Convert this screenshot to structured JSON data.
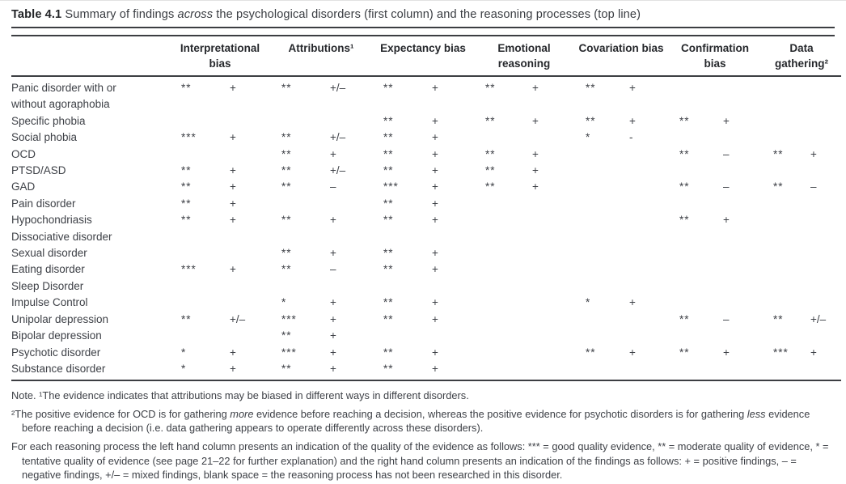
{
  "caption": {
    "segments": [
      {
        "text": "Table 4.1",
        "bold": true
      },
      {
        "text": " Summary of findings "
      },
      {
        "text": "across",
        "italic": true
      },
      {
        "text": " the psychological disorders (first column) and the reasoning processes (top line)"
      }
    ]
  },
  "table": {
    "columns": [
      "Interpretational bias",
      "Attributions¹",
      "Expectancy bias",
      "Emotional reasoning",
      "Covariation bias",
      "Confirmation bias",
      "Data gathering²"
    ],
    "subcolumn_meaning": {
      "left": "quality of evidence (*, **, ***)",
      "right": "direction of findings (+, –, +/–, blank)"
    },
    "rows": [
      {
        "label": "Panic disorder with or without agoraphobia",
        "cells": [
          [
            "**",
            "+"
          ],
          [
            "**",
            "+/–"
          ],
          [
            "**",
            "+"
          ],
          [
            "**",
            "+"
          ],
          [
            "**",
            "+"
          ],
          [
            "",
            ""
          ],
          [
            "",
            ""
          ]
        ]
      },
      {
        "label": "Specific phobia",
        "cells": [
          [
            "",
            ""
          ],
          [
            "",
            ""
          ],
          [
            "**",
            "+"
          ],
          [
            "**",
            "+"
          ],
          [
            "**",
            "+"
          ],
          [
            "**",
            "+"
          ],
          [
            "",
            ""
          ]
        ]
      },
      {
        "label": "Social phobia",
        "cells": [
          [
            "***",
            "+"
          ],
          [
            "**",
            "+/–"
          ],
          [
            "**",
            "+"
          ],
          [
            "",
            ""
          ],
          [
            "*",
            "-"
          ],
          [
            "",
            ""
          ],
          [
            "",
            ""
          ]
        ]
      },
      {
        "label": "OCD",
        "cells": [
          [
            "",
            ""
          ],
          [
            "**",
            "+"
          ],
          [
            "**",
            "+"
          ],
          [
            "**",
            "+"
          ],
          [
            "",
            ""
          ],
          [
            "**",
            "–"
          ],
          [
            "**",
            "+"
          ]
        ]
      },
      {
        "label": "PTSD/ASD",
        "cells": [
          [
            "**",
            "+"
          ],
          [
            "**",
            "+/–"
          ],
          [
            "**",
            "+"
          ],
          [
            "**",
            "+"
          ],
          [
            "",
            ""
          ],
          [
            "",
            ""
          ],
          [
            "",
            ""
          ]
        ]
      },
      {
        "label": "GAD",
        "cells": [
          [
            "**",
            "+"
          ],
          [
            "**",
            "–"
          ],
          [
            "***",
            "+"
          ],
          [
            "**",
            "+"
          ],
          [
            "",
            ""
          ],
          [
            "**",
            "–"
          ],
          [
            "**",
            "–"
          ]
        ]
      },
      {
        "label": "Pain disorder",
        "cells": [
          [
            "**",
            "+"
          ],
          [
            "",
            ""
          ],
          [
            "**",
            "+"
          ],
          [
            "",
            ""
          ],
          [
            "",
            ""
          ],
          [
            "",
            ""
          ],
          [
            "",
            ""
          ]
        ]
      },
      {
        "label": "Hypochondriasis",
        "cells": [
          [
            "**",
            "+"
          ],
          [
            "**",
            "+"
          ],
          [
            "**",
            "+"
          ],
          [
            "",
            ""
          ],
          [
            "",
            ""
          ],
          [
            "**",
            "+"
          ],
          [
            "",
            ""
          ]
        ]
      },
      {
        "label": "Dissociative disorder",
        "cells": [
          [
            "",
            ""
          ],
          [
            "",
            ""
          ],
          [
            "",
            ""
          ],
          [
            "",
            ""
          ],
          [
            "",
            ""
          ],
          [
            "",
            ""
          ],
          [
            "",
            ""
          ]
        ]
      },
      {
        "label": "Sexual disorder",
        "cells": [
          [
            "",
            ""
          ],
          [
            "**",
            "+"
          ],
          [
            "**",
            "+"
          ],
          [
            "",
            ""
          ],
          [
            "",
            ""
          ],
          [
            "",
            ""
          ],
          [
            "",
            ""
          ]
        ]
      },
      {
        "label": "Eating disorder",
        "cells": [
          [
            "***",
            "+"
          ],
          [
            "**",
            "–"
          ],
          [
            "**",
            "+"
          ],
          [
            "",
            ""
          ],
          [
            "",
            ""
          ],
          [
            "",
            ""
          ],
          [
            "",
            ""
          ]
        ]
      },
      {
        "label": "Sleep Disorder",
        "cells": [
          [
            "",
            ""
          ],
          [
            "",
            ""
          ],
          [
            "",
            ""
          ],
          [
            "",
            ""
          ],
          [
            "",
            ""
          ],
          [
            "",
            ""
          ],
          [
            "",
            ""
          ]
        ]
      },
      {
        "label": "Impulse Control",
        "cells": [
          [
            "",
            ""
          ],
          [
            "*",
            "+"
          ],
          [
            "**",
            "+"
          ],
          [
            "",
            ""
          ],
          [
            "*",
            "+"
          ],
          [
            "",
            ""
          ],
          [
            "",
            ""
          ]
        ]
      },
      {
        "label": "Unipolar depression",
        "cells": [
          [
            "**",
            "+/–"
          ],
          [
            "***",
            "+"
          ],
          [
            "**",
            "+"
          ],
          [
            "",
            ""
          ],
          [
            "",
            ""
          ],
          [
            "**",
            "–"
          ],
          [
            "**",
            "+/–"
          ]
        ]
      },
      {
        "label": "Bipolar depression",
        "cells": [
          [
            "",
            ""
          ],
          [
            "**",
            "+"
          ],
          [
            "",
            ""
          ],
          [
            "",
            ""
          ],
          [
            "",
            ""
          ],
          [
            "",
            ""
          ],
          [
            "",
            ""
          ]
        ]
      },
      {
        "label": "Psychotic disorder",
        "cells": [
          [
            "*",
            "+"
          ],
          [
            "***",
            "+"
          ],
          [
            "**",
            "+"
          ],
          [
            "",
            ""
          ],
          [
            "**",
            "+"
          ],
          [
            "**",
            "+"
          ],
          [
            "***",
            "+"
          ]
        ]
      },
      {
        "label": "Substance disorder",
        "cells": [
          [
            "*",
            "+"
          ],
          [
            "**",
            "+"
          ],
          [
            "**",
            "+"
          ],
          [
            "",
            ""
          ],
          [
            "",
            ""
          ],
          [
            "",
            ""
          ],
          [
            "",
            ""
          ]
        ]
      }
    ]
  },
  "notes": {
    "note1": {
      "segments": [
        {
          "text": "Note. ¹The evidence indicates that attributions may be biased in different ways in different disorders."
        }
      ]
    },
    "note2": {
      "segments": [
        {
          "text": "²The positive evidence for OCD is for gathering "
        },
        {
          "text": "more",
          "italic": true
        },
        {
          "text": " evidence before reaching a decision, whereas the positive evidence for psychotic disorders is for gathering "
        },
        {
          "text": "less",
          "italic": true
        },
        {
          "text": " evidence before reaching a decision (i.e. data gathering appears to operate differently across these disorders)."
        }
      ]
    },
    "note3": {
      "segments": [
        {
          "text": "For each reasoning process the left hand column presents an indication of the quality of the evidence as follows: *** = good quality evidence, ** = moderate quality of evidence, * = tentative quality of evidence (see page 21–22 for further explanation) and the right hand column presents an indication of the findings as follows:  + = positive findings, – = negative findings, +/– = mixed findings, blank space = the reasoning process has not been researched in this disorder."
        }
      ]
    }
  }
}
